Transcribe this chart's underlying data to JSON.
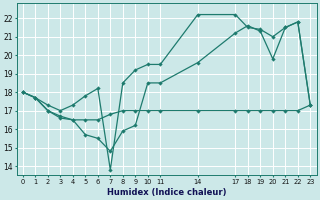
{
  "xlabel": "Humidex (Indice chaleur)",
  "bg_color": "#cce8e8",
  "grid_color": "#ffffff",
  "line_color": "#1e7b6e",
  "xlim": [
    -0.5,
    23.5
  ],
  "ylim": [
    13.5,
    22.8
  ],
  "xticks": [
    0,
    1,
    2,
    3,
    4,
    5,
    6,
    7,
    8,
    9,
    10,
    11,
    14,
    17,
    18,
    19,
    20,
    21,
    22,
    23
  ],
  "yticks": [
    14,
    15,
    16,
    17,
    18,
    19,
    20,
    21,
    22
  ],
  "line1_x": [
    0,
    1,
    2,
    3,
    4,
    5,
    6,
    7,
    8,
    9,
    10,
    11,
    14,
    17,
    18,
    19,
    20,
    21,
    22,
    23
  ],
  "line1_y": [
    18.0,
    17.7,
    17.0,
    16.7,
    16.5,
    16.5,
    16.5,
    16.8,
    17.0,
    17.0,
    17.0,
    17.0,
    17.0,
    17.0,
    17.0,
    17.0,
    17.0,
    17.0,
    17.0,
    17.3
  ],
  "line2_x": [
    0,
    1,
    2,
    3,
    4,
    5,
    6,
    7,
    8,
    9,
    10,
    11,
    14,
    17,
    18,
    19,
    20,
    21,
    22,
    23
  ],
  "line2_y": [
    18.0,
    17.7,
    17.0,
    16.6,
    16.5,
    15.7,
    15.5,
    14.8,
    15.9,
    16.2,
    18.5,
    18.5,
    19.6,
    21.2,
    21.6,
    21.3,
    19.8,
    21.5,
    21.8,
    17.3
  ],
  "line3_x": [
    0,
    1,
    2,
    3,
    4,
    5,
    6,
    7,
    8,
    9,
    10,
    11,
    14,
    17,
    18,
    19,
    20,
    21,
    22,
    23
  ],
  "line3_y": [
    18.0,
    17.7,
    17.3,
    17.0,
    17.3,
    17.8,
    18.2,
    13.8,
    18.5,
    19.2,
    19.5,
    19.5,
    22.2,
    22.2,
    21.5,
    21.4,
    21.0,
    21.5,
    21.8,
    17.3
  ]
}
